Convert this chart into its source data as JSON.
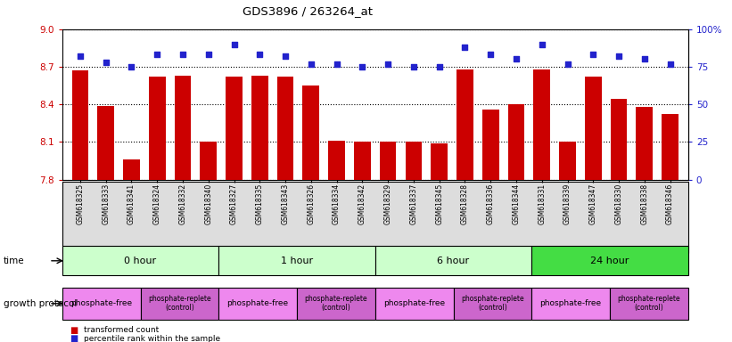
{
  "title": "GDS3896 / 263264_at",
  "samples": [
    "GSM618325",
    "GSM618333",
    "GSM618341",
    "GSM618324",
    "GSM618332",
    "GSM618340",
    "GSM618327",
    "GSM618335",
    "GSM618343",
    "GSM618326",
    "GSM618334",
    "GSM618342",
    "GSM618329",
    "GSM618337",
    "GSM618345",
    "GSM618328",
    "GSM618336",
    "GSM618344",
    "GSM618331",
    "GSM618339",
    "GSM618347",
    "GSM618330",
    "GSM618338",
    "GSM618346"
  ],
  "transformed_count": [
    8.67,
    8.39,
    7.96,
    8.62,
    8.63,
    8.1,
    8.62,
    8.63,
    8.62,
    8.55,
    8.11,
    8.1,
    8.1,
    8.1,
    8.09,
    8.68,
    8.36,
    8.4,
    8.68,
    8.1,
    8.62,
    8.44,
    8.38,
    8.32
  ],
  "percentile_rank": [
    82,
    78,
    75,
    83,
    83,
    83,
    90,
    83,
    82,
    77,
    77,
    75,
    77,
    75,
    75,
    88,
    83,
    80,
    90,
    77,
    83,
    82,
    80,
    77
  ],
  "ylim_left": [
    7.8,
    9.0
  ],
  "ylim_right": [
    0,
    100
  ],
  "yticks_left": [
    7.8,
    8.1,
    8.4,
    8.7,
    9.0
  ],
  "yticks_right": [
    0,
    25,
    50,
    75,
    100
  ],
  "bar_color": "#CC0000",
  "dot_color": "#2222CC",
  "time_groups": [
    {
      "label": "0 hour",
      "start": 0,
      "end": 6,
      "color": "#CCFFCC"
    },
    {
      "label": "1 hour",
      "start": 6,
      "end": 12,
      "color": "#CCFFCC"
    },
    {
      "label": "6 hour",
      "start": 12,
      "end": 18,
      "color": "#CCFFCC"
    },
    {
      "label": "24 hour",
      "start": 18,
      "end": 24,
      "color": "#44DD44"
    }
  ],
  "protocol_groups": [
    {
      "label": "phosphate-free",
      "start": 0,
      "end": 3,
      "color": "#EE88EE"
    },
    {
      "label": "phosphate-replete\n(control)",
      "start": 3,
      "end": 6,
      "color": "#CC66CC"
    },
    {
      "label": "phosphate-free",
      "start": 6,
      "end": 9,
      "color": "#EE88EE"
    },
    {
      "label": "phosphate-replete\n(control)",
      "start": 9,
      "end": 12,
      "color": "#CC66CC"
    },
    {
      "label": "phosphate-free",
      "start": 12,
      "end": 15,
      "color": "#EE88EE"
    },
    {
      "label": "phosphate-replete\n(control)",
      "start": 15,
      "end": 18,
      "color": "#CC66CC"
    },
    {
      "label": "phosphate-free",
      "start": 18,
      "end": 21,
      "color": "#EE88EE"
    },
    {
      "label": "phosphate-replete\n(control)",
      "start": 21,
      "end": 24,
      "color": "#CC66CC"
    }
  ]
}
